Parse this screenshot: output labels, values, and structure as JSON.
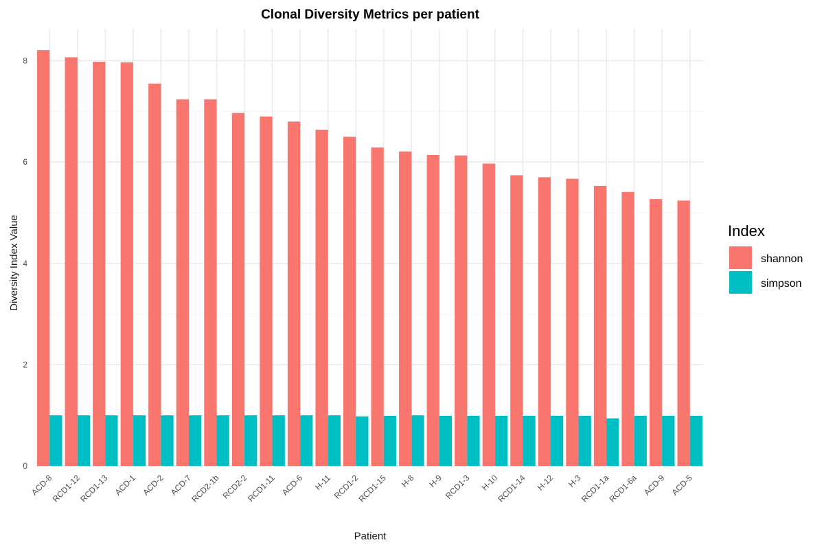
{
  "chart_data": {
    "type": "bar",
    "title": "Clonal Diversity Metrics per patient",
    "xlabel": "Patient",
    "ylabel": "Diversity Index Value",
    "ylim": [
      0,
      8.4
    ],
    "yticks": [
      0,
      2,
      4,
      6,
      8
    ],
    "grid": true,
    "legend": {
      "title": "Index",
      "position": "right"
    },
    "categories": [
      "ACD-8",
      "RCD1-12",
      "RCD1-13",
      "ACD-1",
      "ACD-2",
      "ACD-7",
      "RCD2-1b",
      "RCD2-2",
      "RCD1-11",
      "ACD-6",
      "H-11",
      "RCD1-2",
      "RCD1-15",
      "H-8",
      "H-9",
      "RCD1-3",
      "H-10",
      "RCD1-14",
      "H-12",
      "H-3",
      "RCD1-1a",
      "RCD1-6a",
      "ACD-9",
      "ACD-5"
    ],
    "series": [
      {
        "name": "shannon",
        "color": "#F8766D",
        "values": [
          8.21,
          8.07,
          7.98,
          7.97,
          7.55,
          7.24,
          7.24,
          6.97,
          6.9,
          6.8,
          6.64,
          6.5,
          6.29,
          6.21,
          6.14,
          6.13,
          5.97,
          5.74,
          5.7,
          5.67,
          5.53,
          5.41,
          5.27,
          5.24
        ]
      },
      {
        "name": "simpson",
        "color": "#00BFC4",
        "values": [
          1.0,
          1.0,
          1.0,
          1.0,
          1.0,
          1.0,
          1.0,
          1.0,
          1.0,
          1.0,
          1.0,
          0.98,
          0.99,
          1.0,
          0.99,
          0.99,
          0.99,
          0.99,
          0.99,
          0.99,
          0.94,
          0.99,
          0.99,
          0.99
        ]
      }
    ]
  }
}
